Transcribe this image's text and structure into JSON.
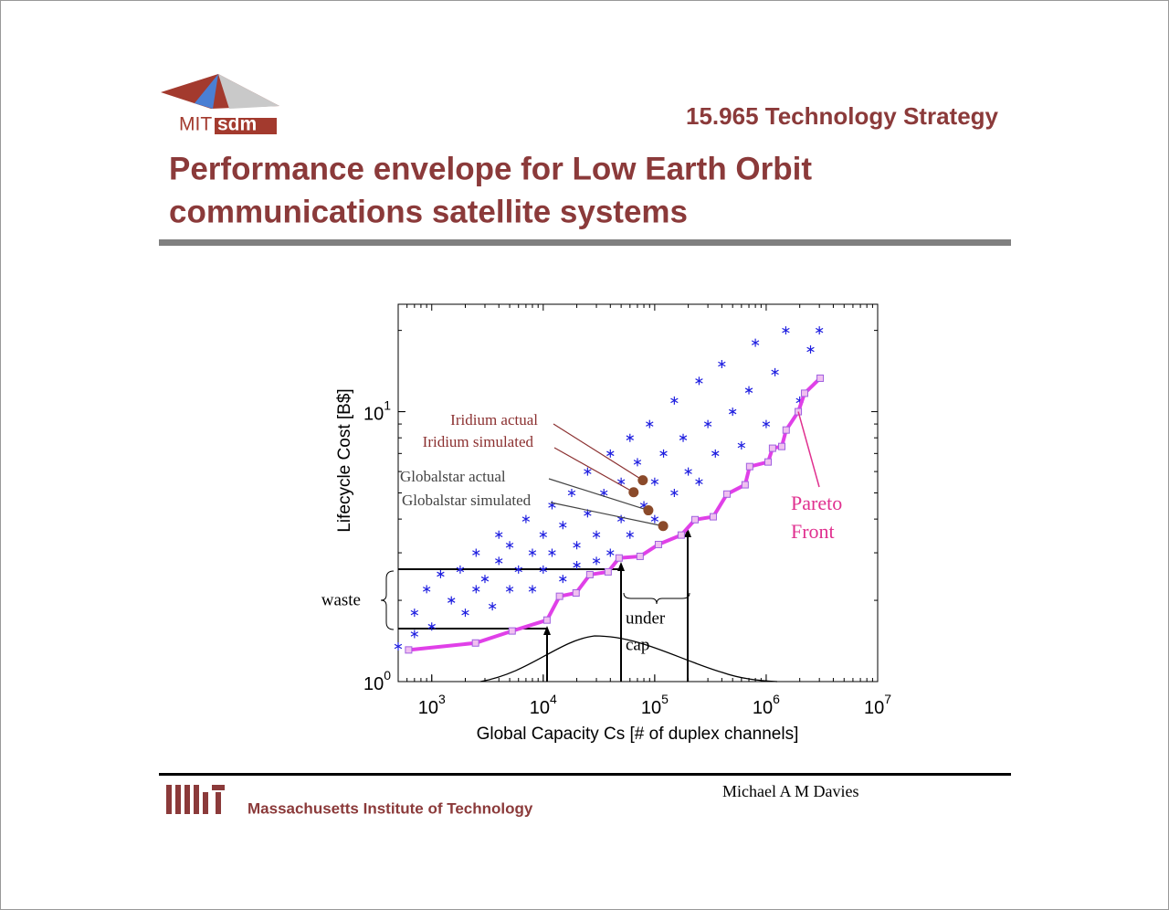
{
  "header": {
    "logo_left": "MIT",
    "logo_right": "sdm",
    "course": "15.965 Technology Strategy",
    "title_lines": [
      "Performance envelope for Low Earth Orbit",
      "communications satellite systems"
    ]
  },
  "footer": {
    "institution": "Massachusetts Institute of Technology",
    "author": "Michael A M Davies"
  },
  "chart_data": {
    "type": "scatter",
    "xlabel": "Global Capacity Cs [# of duplex channels]",
    "ylabel": "Lifecycle Cost [B$]",
    "xlim": [
      500,
      10000000
    ],
    "ylim": [
      1,
      25
    ],
    "log_x": true,
    "log_y": true,
    "xticks": [
      {
        "value": 1000,
        "label": "10",
        "power": "3"
      },
      {
        "value": 10000,
        "label": "10",
        "power": "4"
      },
      {
        "value": 100000,
        "label": "10",
        "power": "5"
      },
      {
        "value": 1000000,
        "label": "10",
        "power": "6"
      },
      {
        "value": 10000000,
        "label": "10",
        "power": "7"
      }
    ],
    "yticks": [
      {
        "value": 1,
        "label": "10",
        "power": "0"
      },
      {
        "value": 10,
        "label": "10",
        "power": "1"
      }
    ],
    "points": {
      "color": "#1f1fe0",
      "x": [
        700,
        700,
        900,
        1000,
        1200,
        1500,
        1800,
        2000,
        2500,
        2500,
        3000,
        3500,
        4000,
        4000,
        5000,
        5000,
        6000,
        7000,
        8000,
        8000,
        10000,
        10000,
        12000,
        12000,
        15000,
        15000,
        18000,
        20000,
        20000,
        25000,
        25000,
        30000,
        30000,
        35000,
        40000,
        40000,
        50000,
        50000,
        60000,
        60000,
        70000,
        80000,
        90000,
        100000,
        100000,
        120000,
        150000,
        150000,
        180000,
        200000,
        250000,
        250000,
        300000,
        350000,
        400000,
        500000,
        600000,
        700000,
        800000,
        1000000,
        1200000,
        1500000,
        2000000,
        2500000,
        3000000,
        500
      ],
      "y": [
        1.5,
        1.8,
        2.2,
        1.6,
        2.5,
        2.0,
        2.6,
        1.8,
        2.2,
        3.0,
        2.4,
        1.9,
        2.8,
        3.5,
        2.2,
        3.2,
        2.6,
        4.0,
        3.0,
        2.2,
        3.5,
        2.6,
        4.5,
        3.0,
        2.4,
        3.8,
        5.0,
        3.2,
        2.7,
        4.2,
        6.0,
        3.5,
        2.8,
        5.0,
        7.0,
        3.0,
        4.0,
        5.5,
        8.0,
        3.5,
        6.5,
        4.5,
        9.0,
        5.5,
        4.0,
        7.0,
        11,
        5.0,
        8.0,
        6.0,
        13,
        5.5,
        9.0,
        7.0,
        15,
        10,
        7.5,
        12,
        18,
        9.0,
        14,
        20,
        11,
        17,
        20,
        1.35
      ]
    },
    "pareto": {
      "color": "#e040e8",
      "label_lines": [
        "Pareto",
        "Front"
      ],
      "label_color": "#e0308f",
      "x": [
        620,
        2470,
        5260,
        10800,
        14000,
        19700,
        26200,
        38200,
        47900,
        73900,
        108000,
        173000,
        230000,
        335000,
        445000,
        647000,
        711000,
        1040000,
        1140000,
        1380000,
        1510000,
        1940000,
        2210000,
        3050000
      ],
      "y": [
        1.31,
        1.39,
        1.54,
        1.69,
        2.07,
        2.13,
        2.49,
        2.55,
        2.87,
        2.91,
        3.22,
        3.49,
        3.98,
        4.08,
        4.95,
        5.36,
        6.26,
        6.51,
        7.32,
        7.43,
        8.55,
        10.0,
        11.7,
        13.3
      ]
    },
    "systems": [
      {
        "label": "Iridium actual",
        "x": 78200,
        "y": 5.57,
        "color": "#8b3030"
      },
      {
        "label": "Iridium simulated",
        "x": 64700,
        "y": 5.03,
        "color": "#8b3030"
      },
      {
        "label": "Globalstar actual",
        "x": 87700,
        "y": 4.31,
        "color": "#444444"
      },
      {
        "label": "Globalstar simulated",
        "x": 119000,
        "y": 3.77,
        "color": "#444444"
      }
    ],
    "annotations": {
      "waste": "waste",
      "under": "under",
      "cap": "cap"
    }
  }
}
